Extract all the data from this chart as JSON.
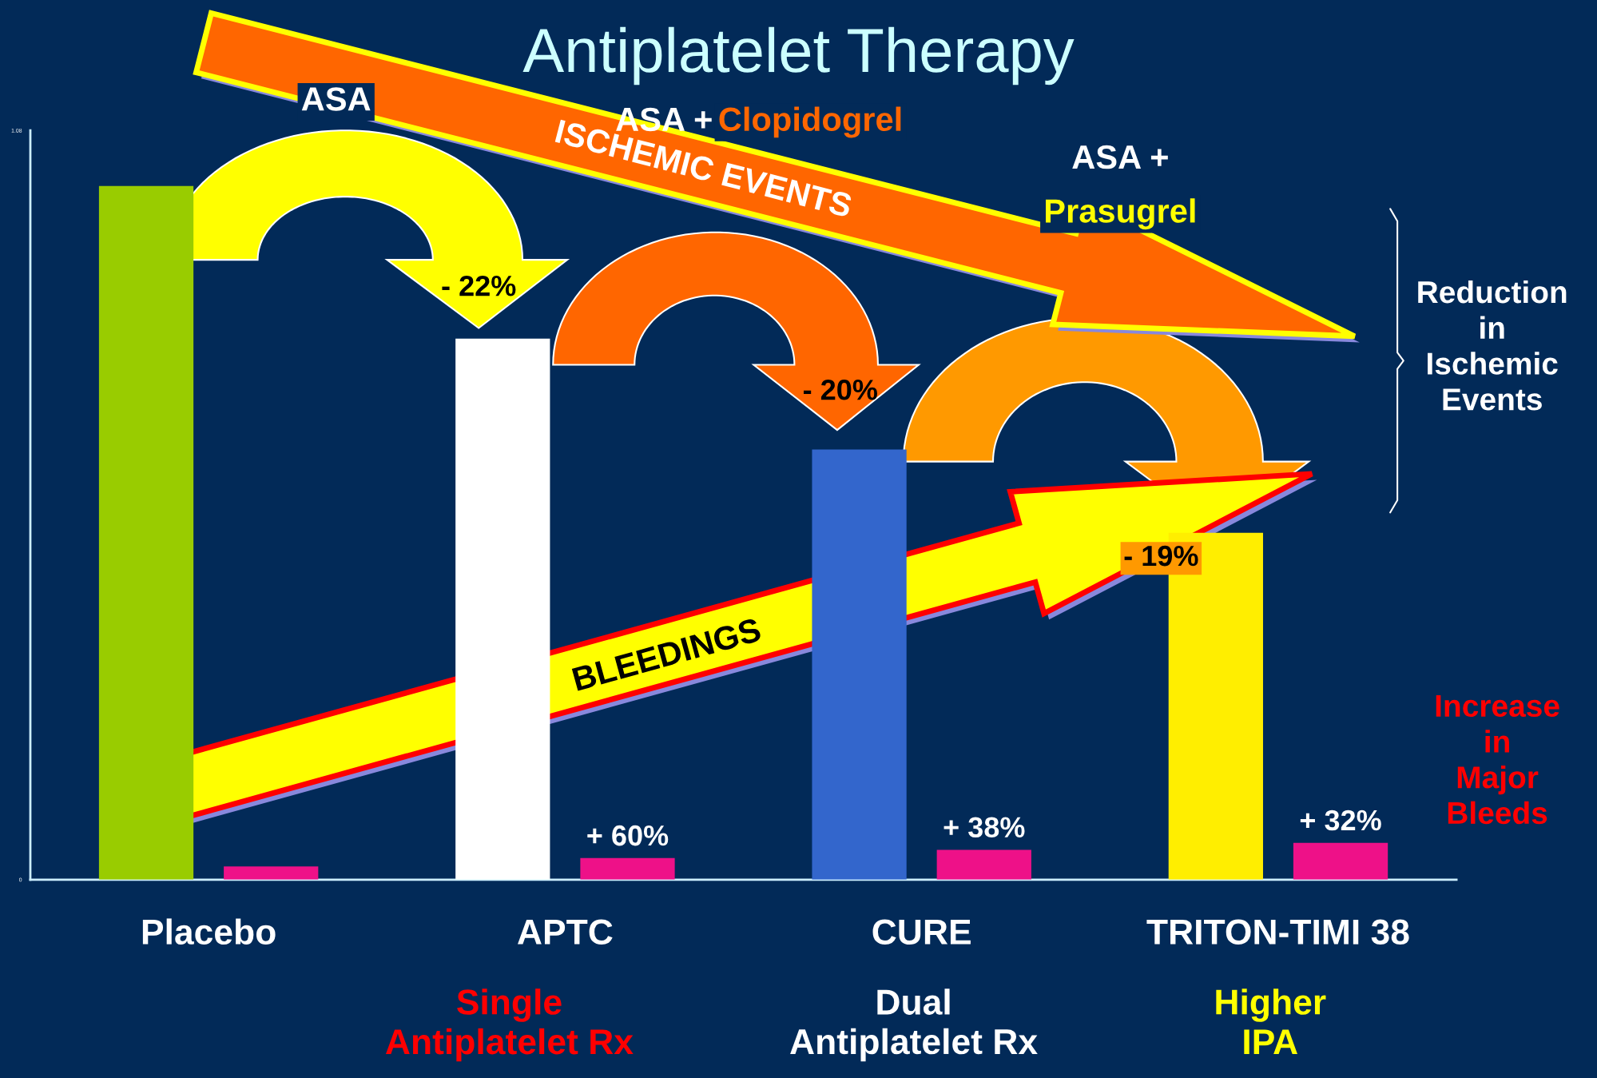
{
  "chart_data": {
    "type": "bar",
    "title": "Antiplatelet Therapy",
    "categories": [
      "Placebo",
      "APTC",
      "CURE",
      "TRITON-TIMI 38"
    ],
    "series": [
      {
        "colors": [
          "#99cc00",
          "#ffffff",
          "#3366cc",
          "#ffee00"
        ],
        "values": [
          1.0,
          0.78,
          0.62,
          0.5
        ]
      },
      {
        "color": "#ee1188",
        "values": [
          0.019,
          0.031,
          0.043,
          0.053
        ]
      }
    ],
    "ylim": [
      0,
      1.08
    ],
    "yticks": [
      0,
      1.08
    ],
    "grid": false,
    "legend": false,
    "annotations": [
      "ASA",
      "ASA + Clopidogrel",
      "ASA + Prasugrel",
      "- 22%",
      "- 20%",
      "- 19%",
      "ISCHEMIC EVENTS",
      "BLEEDINGS",
      "Reduction in Ischemic Events",
      "Increase in Major Bleeds",
      "Single Antiplatelet Rx",
      "Dual Antiplatelet Rx",
      "Higher IPA",
      "+ 60%",
      "+ 38%",
      "+ 32%"
    ]
  }
}
